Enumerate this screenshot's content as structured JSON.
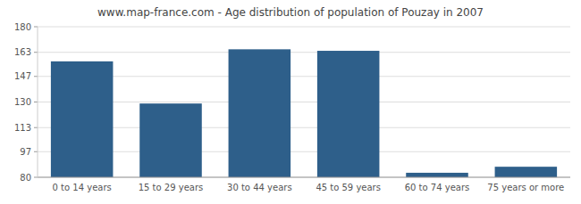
{
  "chart_data": {
    "type": "bar",
    "title": "www.map-france.com - Age distribution of population of Pouzay in 2007",
    "categories": [
      "0 to 14 years",
      "15 to 29 years",
      "30 to 44 years",
      "45 to 59 years",
      "60 to 74 years",
      "75 years or more"
    ],
    "values": [
      157,
      129,
      165,
      164,
      83,
      87
    ],
    "color": "#2e5f8a",
    "ylim": [
      80,
      180
    ],
    "yticks": [
      80,
      97,
      113,
      130,
      147,
      163,
      180
    ],
    "grid": true
  }
}
